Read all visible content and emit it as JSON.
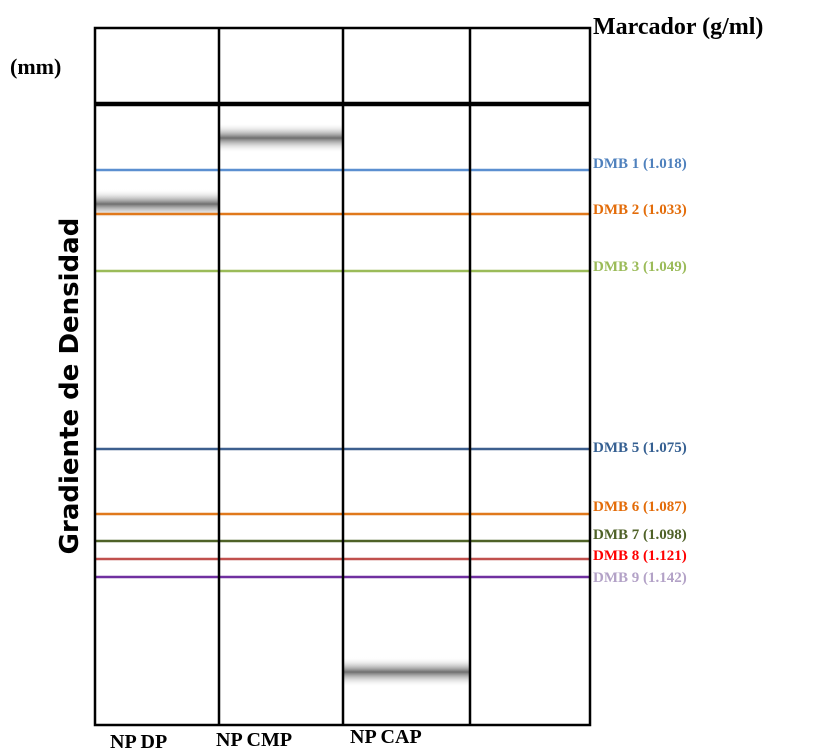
{
  "header": {
    "title": "Marcador (g/ml)",
    "unit": "(mm)"
  },
  "axis_label": "Gradiente de Densidad",
  "lanes": [
    {
      "label": "NP DP"
    },
    {
      "label": "NP CMP"
    },
    {
      "label": "NP CAP"
    }
  ],
  "markers": [
    {
      "label": "DMB 1 (1.018)",
      "line_color": "#5b8fd0",
      "text_color": "#4f81bd"
    },
    {
      "label": "DMB 2 (1.033)",
      "line_color": "#e0791c",
      "text_color": "#e36c09"
    },
    {
      "label": "DMB 3 (1.049)",
      "line_color": "#9bbb59",
      "text_color": "#9bbb59"
    },
    {
      "label": "DMB 5 (1.075)",
      "line_color": "#3d5f8e",
      "text_color": "#366092"
    },
    {
      "label": "DMB 6 (1.087)",
      "line_color": "#e0791c",
      "text_color": "#e36c09"
    },
    {
      "label": "DMB 7 (1.098)",
      "line_color": "#4f6228",
      "text_color": "#4f6228"
    },
    {
      "label": "DMB 8 (1.121)",
      "line_color": "#c0504d",
      "text_color": "#ff0000"
    },
    {
      "label": "DMB 9 (1.142)",
      "line_color": "#7030a0",
      "text_color": "#b3a2c7"
    }
  ]
}
